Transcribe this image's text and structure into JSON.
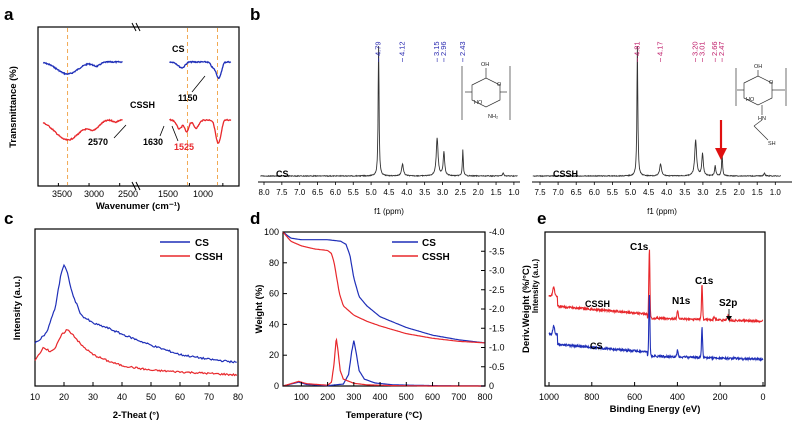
{
  "colors": {
    "cs": "#1f2fb8",
    "cssh": "#e8282c",
    "axis": "#000000",
    "guide": "#f0a040",
    "nmr_cs_label": "#2b2bb0",
    "nmr_cssh_label": "#c0206c",
    "arrow": "#e01010"
  },
  "panels": {
    "a": {
      "letter": "a"
    },
    "b": {
      "letter": "b"
    },
    "c": {
      "letter": "c"
    },
    "d": {
      "letter": "d"
    },
    "e": {
      "letter": "e"
    }
  },
  "chart_data": [
    {
      "id": "a",
      "type": "line",
      "xlabel": "Wavenumer (cm⁻¹)",
      "ylabel": "Transmittance (%)",
      "xticks": [
        "3500",
        "3000",
        "2500",
        "1500",
        "1000"
      ],
      "series": [
        {
          "name": "CS",
          "color": "#1f2fb8"
        },
        {
          "name": "CSSH",
          "color": "#e8282c"
        }
      ],
      "annotations": [
        "CS",
        "CSSH",
        "1150",
        "2570",
        "1630",
        "1525"
      ],
      "reference_lines_cm1": [
        3350,
        1530,
        1080
      ]
    },
    {
      "id": "b",
      "type": "line",
      "xlabel": "f1 (ppm)",
      "xticks": [
        "8.0",
        "7.5",
        "7.0",
        "6.5",
        "6.0",
        "5.5",
        "5.0",
        "4.5",
        "4.0",
        "3.5",
        "3.0",
        "2.5",
        "2.0",
        "1.5",
        "1.0"
      ],
      "xticks_right": [
        "7.5",
        "7.0",
        "6.5",
        "6.0",
        "5.5",
        "5.0",
        "4.5",
        "4.0",
        "3.5",
        "3.0",
        "2.5",
        "2.0",
        "1.5",
        "1.0"
      ],
      "series": [
        {
          "name": "CS",
          "peaks_ppm": [
            4.79,
            4.12,
            3.15,
            2.96,
            2.43
          ],
          "peak_labels": [
            "4.79",
            "4.12",
            "3.15",
            "2.96",
            "2.43"
          ]
        },
        {
          "name": "CSSH",
          "peaks_ppm": [
            4.81,
            4.17,
            3.2,
            3.01,
            2.66,
            2.47
          ],
          "peak_labels": [
            "4.81",
            "4.17",
            "3.20",
            "3.01",
            "2.66",
            "2.47"
          ]
        }
      ],
      "structure_labels_cs": [
        "OH",
        "HO",
        "O",
        "NH₂"
      ],
      "structure_labels_cssh": [
        "OH",
        "HO",
        "O",
        "HN",
        "SH"
      ]
    },
    {
      "id": "c",
      "type": "line",
      "xlabel": "2-Theat (°)",
      "ylabel": "Intensity (a.u.)",
      "xlim": [
        10,
        80
      ],
      "xticks": [
        "10",
        "20",
        "30",
        "40",
        "50",
        "60",
        "70",
        "80"
      ],
      "legend": "top-right",
      "series": [
        {
          "name": "CS",
          "color": "#1f2fb8",
          "x": [
            10,
            14,
            17,
            19,
            20,
            21,
            23,
            26,
            30,
            35,
            40,
            50,
            60,
            70,
            80
          ],
          "y": [
            0.27,
            0.34,
            0.5,
            0.72,
            0.77,
            0.73,
            0.58,
            0.45,
            0.4,
            0.37,
            0.33,
            0.26,
            0.2,
            0.17,
            0.15
          ]
        },
        {
          "name": "CSSH",
          "color": "#e8282c",
          "x": [
            10,
            12,
            13,
            15,
            17,
            19,
            21,
            23,
            26,
            30,
            35,
            40,
            50,
            60,
            70,
            80
          ],
          "y": [
            0.16,
            0.22,
            0.25,
            0.22,
            0.24,
            0.32,
            0.36,
            0.33,
            0.26,
            0.2,
            0.16,
            0.13,
            0.1,
            0.09,
            0.08,
            0.07
          ]
        }
      ]
    },
    {
      "id": "d",
      "type": "line",
      "xlabel": "Temperature (°C)",
      "ylabel": "Weight (%)",
      "ylabel_right": "Deriv.Weight (%/°C)",
      "xlim": [
        30,
        800
      ],
      "ylim": [
        0,
        100
      ],
      "ylim_right": [
        0,
        -4.0
      ],
      "xticks": [
        "100",
        "200",
        "300",
        "400",
        "500",
        "600",
        "700",
        "800"
      ],
      "yticks": [
        "0",
        "20",
        "40",
        "60",
        "80",
        "100"
      ],
      "yticks_right": [
        "0",
        "-0.5",
        "-1.0",
        "-1.5",
        "-2.0",
        "-2.5",
        "-3.0",
        "-3.5",
        "-4.0"
      ],
      "legend": "top-right",
      "series": [
        {
          "name": "CS",
          "color": "#1f2fb8",
          "weight_x": [
            30,
            60,
            100,
            150,
            200,
            250,
            270,
            285,
            300,
            320,
            350,
            400,
            500,
            600,
            700,
            800
          ],
          "weight_y": [
            100,
            96,
            95,
            95,
            95,
            94,
            92,
            85,
            70,
            58,
            52,
            45,
            38,
            33,
            30,
            28
          ],
          "deriv_x": [
            30,
            60,
            90,
            120,
            200,
            260,
            280,
            292,
            300,
            308,
            320,
            340,
            380,
            450,
            600,
            800
          ],
          "deriv_y": [
            0,
            -0.05,
            -0.1,
            -0.04,
            -0.01,
            -0.05,
            -0.3,
            -0.9,
            -1.18,
            -0.9,
            -0.4,
            -0.18,
            -0.08,
            -0.03,
            -0.01,
            0
          ]
        },
        {
          "name": "CSSH",
          "color": "#e8282c",
          "weight_x": [
            30,
            60,
            100,
            150,
            200,
            215,
            225,
            235,
            245,
            260,
            300,
            350,
            400,
            500,
            600,
            700,
            800
          ],
          "weight_y": [
            100,
            94,
            91,
            89,
            88,
            86,
            80,
            70,
            60,
            52,
            46,
            42,
            39,
            34,
            31,
            29,
            28
          ],
          "deriv_x": [
            30,
            60,
            90,
            120,
            200,
            215,
            225,
            233,
            240,
            248,
            260,
            300,
            350,
            450,
            600,
            800
          ],
          "deriv_y": [
            0,
            -0.06,
            -0.12,
            -0.06,
            -0.02,
            -0.1,
            -0.6,
            -1.25,
            -0.9,
            -0.4,
            -0.18,
            -0.07,
            -0.03,
            -0.01,
            0,
            0
          ]
        }
      ]
    },
    {
      "id": "e",
      "type": "line",
      "xlabel": "Binding Energy (eV)",
      "ylabel": "Intensity (a.u.)",
      "xlim": [
        1000,
        0
      ],
      "xticks": [
        "1000",
        "800",
        "600",
        "400",
        "200",
        "0"
      ],
      "series": [
        {
          "name": "CSSH",
          "color": "#e8282c"
        },
        {
          "name": "CS",
          "color": "#1f2fb8"
        }
      ],
      "annotations": [
        "C1s",
        "C1s",
        "N1s",
        "S2p",
        "CSSH",
        "CS"
      ]
    }
  ]
}
